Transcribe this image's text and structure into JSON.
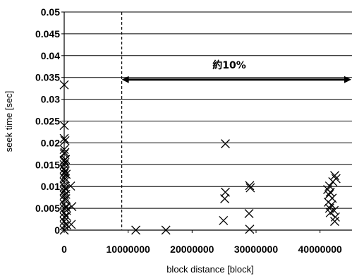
{
  "chart_data": {
    "type": "scatter",
    "title": "",
    "xlabel": "block distance [block]",
    "ylabel": "seek time [sec]",
    "xlim": [
      0,
      45000000
    ],
    "ylim": [
      0,
      0.05
    ],
    "grid": {
      "horizontal": true,
      "vertical": false
    },
    "x_ticks": [
      0,
      10000000,
      20000000,
      30000000,
      40000000
    ],
    "x_tick_labels": [
      "0",
      "10000000",
      "20000000",
      "30000000",
      "40000000"
    ],
    "y_ticks": [
      0,
      0.005,
      0.01,
      0.015,
      0.02,
      0.025,
      0.03,
      0.035,
      0.04,
      0.045,
      0.05
    ],
    "y_tick_labels": [
      "0",
      "0.005",
      "0.01",
      "0.015",
      "0.02",
      "0.025",
      "0.03",
      "0.035",
      "0.04",
      "0.045",
      "0.05"
    ],
    "marker": "x",
    "reference_line": {
      "x": 9000000,
      "style": "dashed"
    },
    "annotation": {
      "text": "約10%",
      "arrow_from_x": 9000000,
      "arrow_y": 0.0345,
      "extends_past_right_edge": true
    },
    "series": [
      {
        "points": [
          [
            0,
            0.0333
          ],
          [
            0,
            0.024
          ],
          [
            0,
            0.021
          ],
          [
            0,
            0.0185
          ],
          [
            0,
            0.0175
          ],
          [
            0,
            0.016
          ],
          [
            0,
            0.015
          ],
          [
            0,
            0.014
          ],
          [
            0,
            0.013
          ],
          [
            0,
            0.012
          ],
          [
            0,
            0.011
          ],
          [
            0,
            0.01
          ],
          [
            0,
            0.009
          ],
          [
            0,
            0.008
          ],
          [
            0,
            0.007
          ],
          [
            0,
            0.006
          ],
          [
            0,
            0.005
          ],
          [
            0,
            0.004
          ],
          [
            0,
            0.003
          ],
          [
            0,
            0.002
          ],
          [
            0,
            0.001
          ],
          [
            0,
            0.0
          ],
          [
            100000,
            0.0178
          ],
          [
            120000,
            0.0155
          ],
          [
            150000,
            0.0135
          ],
          [
            180000,
            0.0118
          ],
          [
            200000,
            0.0095
          ],
          [
            250000,
            0.0072
          ],
          [
            300000,
            0.0052
          ],
          [
            350000,
            0.0032
          ],
          [
            400000,
            0.0012
          ],
          [
            120000,
            0.0205
          ],
          [
            200000,
            0.0162
          ],
          [
            300000,
            0.0128
          ],
          [
            250000,
            0.0082
          ],
          [
            350000,
            0.0045
          ],
          [
            1000000,
            0.0101
          ],
          [
            1200000,
            0.0054
          ],
          [
            1100000,
            0.0013
          ],
          [
            11200000,
            0.0
          ],
          [
            15900000,
            0.0
          ],
          [
            25200000,
            0.0198
          ],
          [
            25200000,
            0.0087
          ],
          [
            25100000,
            0.0072
          ],
          [
            24900000,
            0.0022
          ],
          [
            29000000,
            0.0102
          ],
          [
            29100000,
            0.0097
          ],
          [
            28900000,
            0.0038
          ],
          [
            29000000,
            0.0002
          ],
          [
            42300000,
            0.0125
          ],
          [
            42500000,
            0.0118
          ],
          [
            42000000,
            0.0111
          ],
          [
            41500000,
            0.0101
          ],
          [
            41200000,
            0.0093
          ],
          [
            41600000,
            0.0087
          ],
          [
            41400000,
            0.0081
          ],
          [
            41900000,
            0.0073
          ],
          [
            41300000,
            0.0064
          ],
          [
            41800000,
            0.0058
          ],
          [
            41500000,
            0.005
          ],
          [
            42200000,
            0.0045
          ],
          [
            41600000,
            0.004
          ],
          [
            42400000,
            0.003
          ],
          [
            42300000,
            0.002
          ]
        ]
      }
    ]
  }
}
